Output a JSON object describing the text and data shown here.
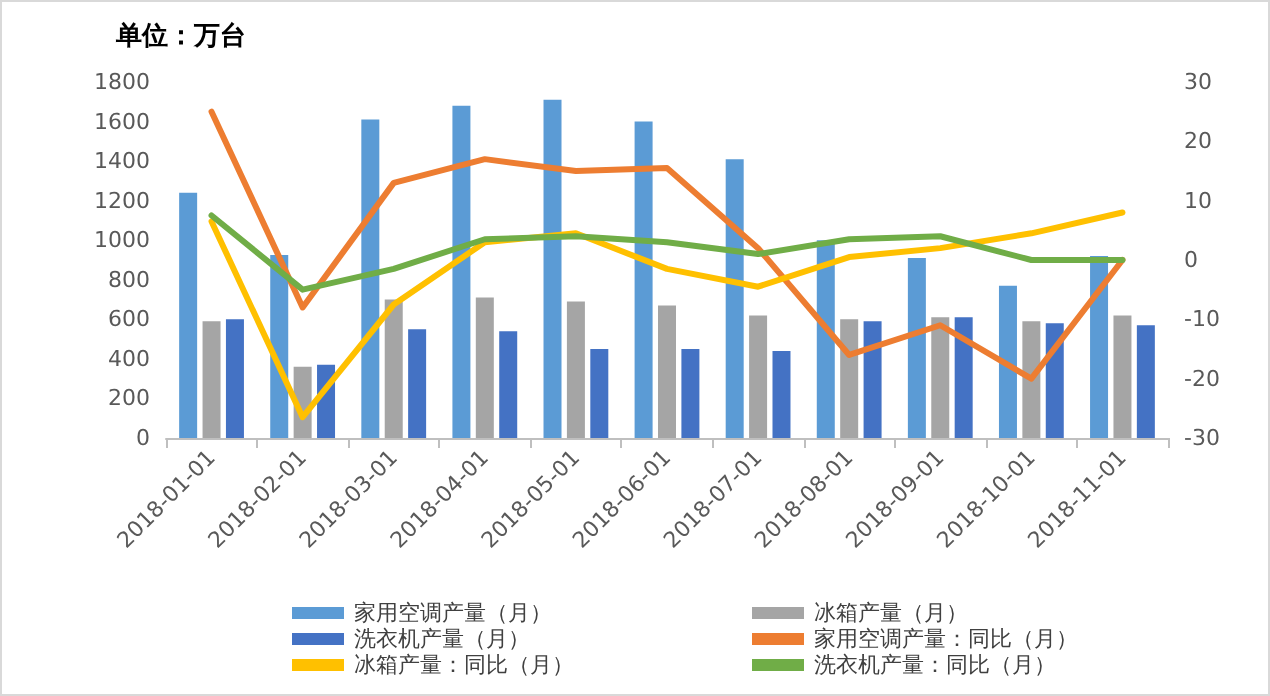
{
  "chart_data": {
    "type": "bar",
    "title": "单位：万台",
    "categories": [
      "2018-01-01",
      "2018-02-01",
      "2018-03-01",
      "2018-04-01",
      "2018-05-01",
      "2018-06-01",
      "2018-07-01",
      "2018-08-01",
      "2018-09-01",
      "2018-10-01",
      "2018-11-01"
    ],
    "series": [
      {
        "name": "家用空调产量（月）",
        "color": "#5b9bd5",
        "values": [
          1240,
          925,
          1610,
          1680,
          1710,
          1600,
          1410,
          1000,
          910,
          770,
          920
        ]
      },
      {
        "name": "冰箱产量（月）",
        "color": "#a5a5a5",
        "values": [
          590,
          360,
          700,
          710,
          690,
          670,
          620,
          600,
          610,
          590,
          620
        ]
      },
      {
        "name": "洗衣机产量（月）",
        "color": "#4472c4",
        "values": [
          600,
          370,
          550,
          540,
          450,
          450,
          440,
          590,
          610,
          580,
          570
        ]
      },
      {
        "name": "家用空调产量：同比（月）",
        "type": "line",
        "axis": "y2",
        "color": "#ed7d31",
        "values": [
          25,
          -8,
          13,
          17,
          15,
          15.5,
          2,
          -16,
          -11,
          -20,
          0
        ]
      },
      {
        "name": "冰箱产量：同比（月）",
        "type": "line",
        "axis": "y2",
        "color": "#ffc000",
        "values": [
          6.5,
          -26.5,
          -7.5,
          3,
          4.5,
          -1.5,
          -4.5,
          0.5,
          2,
          4.5,
          8
        ]
      },
      {
        "name": "洗衣机产量：同比（月）",
        "type": "line",
        "axis": "y2",
        "color": "#70ad47",
        "values": [
          7.5,
          -5,
          -1.5,
          3.5,
          4,
          3,
          1,
          3.5,
          4,
          0,
          0
        ]
      }
    ],
    "ylim": [
      0,
      1800
    ],
    "yticks": [
      0,
      200,
      400,
      600,
      800,
      1000,
      1200,
      1400,
      1600,
      1800
    ],
    "y2lim": [
      -30,
      30
    ],
    "y2ticks": [
      -30,
      -20,
      -10,
      0,
      10,
      20,
      30
    ],
    "grid": false,
    "legend": "bottom",
    "marker": "none"
  }
}
